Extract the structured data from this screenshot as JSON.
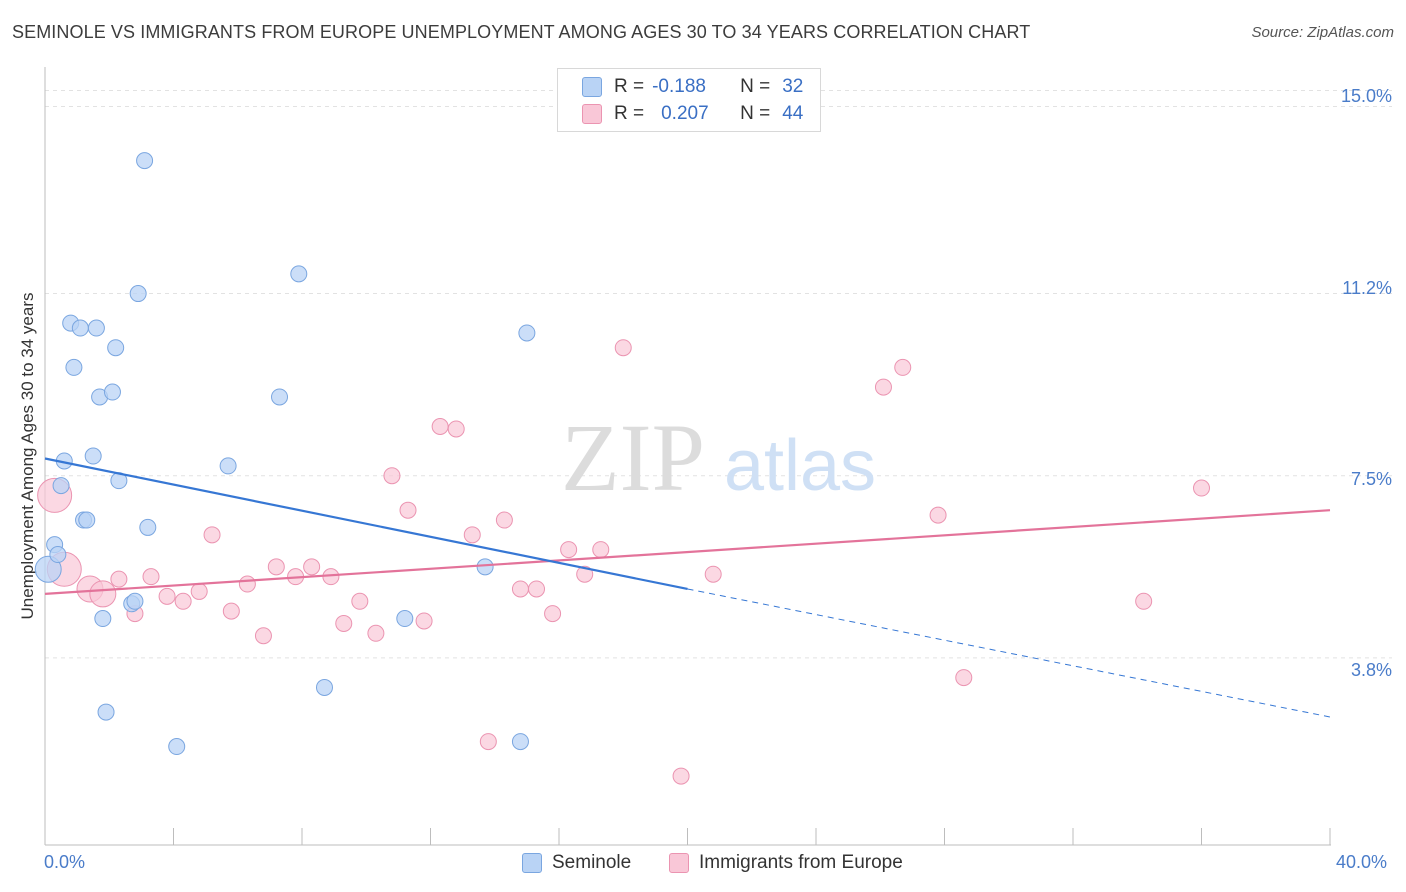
{
  "title": "SEMINOLE VS IMMIGRANTS FROM EUROPE UNEMPLOYMENT AMONG AGES 30 TO 34 YEARS CORRELATION CHART",
  "source": "Source: ZipAtlas.com",
  "colors": {
    "seminole_fill": "#b9d3f5",
    "seminole_stroke": "#7aa6e0",
    "seminole_line": "#3677d4",
    "europe_fill": "#f9c7d7",
    "europe_stroke": "#eb94b1",
    "europe_line": "#e3739a",
    "tick": "#4a7cc9"
  },
  "legend": {
    "r_label": "R =",
    "n_label": "N =",
    "seminole": {
      "r": "-0.188",
      "n": "32"
    },
    "europe": {
      "r": "0.207",
      "n": "44"
    }
  },
  "watermark": {
    "zip": "ZIP",
    "atlas": "atlas"
  },
  "chart_data": {
    "type": "scatter",
    "title": "SEMINOLE VS IMMIGRANTS FROM EUROPE UNEMPLOYMENT AMONG AGES 30 TO 34 YEARS CORRELATION CHART",
    "xlabel": "",
    "ylabel": "Unemployment Among Ages 30 to 34 years",
    "xlim": [
      0,
      40
    ],
    "ylim": [
      0,
      15.7
    ],
    "x_tick_labels": [
      "0.0%",
      "40.0%"
    ],
    "y_ticks": [
      3.8,
      7.5,
      11.2,
      15.0
    ],
    "y_tick_labels": [
      "3.8%",
      "7.5%",
      "11.2%",
      "15.0%"
    ],
    "grid": true,
    "legend_position": "top-center",
    "series": [
      {
        "name": "Seminole",
        "r": -0.188,
        "n": 32,
        "trend": {
          "x_start": 0,
          "y_start": 7.85,
          "x_solid_end": 20,
          "y_solid_end": 5.2,
          "x_dash_end": 40,
          "y_dash_end": 2.6
        },
        "points": [
          {
            "x": 0.1,
            "y": 5.6,
            "s": 2
          },
          {
            "x": 0.3,
            "y": 6.1,
            "s": 1
          },
          {
            "x": 0.4,
            "y": 5.9,
            "s": 1
          },
          {
            "x": 0.5,
            "y": 7.3,
            "s": 1
          },
          {
            "x": 0.6,
            "y": 7.8,
            "s": 1
          },
          {
            "x": 0.8,
            "y": 10.6,
            "s": 1
          },
          {
            "x": 0.9,
            "y": 9.7,
            "s": 1
          },
          {
            "x": 1.1,
            "y": 10.5,
            "s": 1
          },
          {
            "x": 1.2,
            "y": 6.6,
            "s": 1
          },
          {
            "x": 1.3,
            "y": 6.6,
            "s": 1
          },
          {
            "x": 1.5,
            "y": 7.9,
            "s": 1
          },
          {
            "x": 1.6,
            "y": 10.5,
            "s": 1
          },
          {
            "x": 1.7,
            "y": 9.1,
            "s": 1
          },
          {
            "x": 1.8,
            "y": 4.6,
            "s": 1
          },
          {
            "x": 1.9,
            "y": 2.7,
            "s": 1
          },
          {
            "x": 2.1,
            "y": 9.2,
            "s": 1
          },
          {
            "x": 2.2,
            "y": 10.1,
            "s": 1
          },
          {
            "x": 2.3,
            "y": 7.4,
            "s": 1
          },
          {
            "x": 2.7,
            "y": 4.9,
            "s": 1
          },
          {
            "x": 2.8,
            "y": 4.95,
            "s": 1
          },
          {
            "x": 2.9,
            "y": 11.2,
            "s": 1
          },
          {
            "x": 3.1,
            "y": 13.9,
            "s": 1
          },
          {
            "x": 3.2,
            "y": 6.45,
            "s": 1
          },
          {
            "x": 4.1,
            "y": 2.0,
            "s": 1
          },
          {
            "x": 5.7,
            "y": 7.7,
            "s": 1
          },
          {
            "x": 7.3,
            "y": 9.1,
            "s": 1
          },
          {
            "x": 7.9,
            "y": 11.6,
            "s": 1
          },
          {
            "x": 8.7,
            "y": 3.2,
            "s": 1
          },
          {
            "x": 11.2,
            "y": 4.6,
            "s": 1
          },
          {
            "x": 13.7,
            "y": 5.65,
            "s": 1
          },
          {
            "x": 14.8,
            "y": 2.1,
            "s": 1
          },
          {
            "x": 15.0,
            "y": 10.4,
            "s": 1
          }
        ]
      },
      {
        "name": "Immigrants from Europe",
        "r": 0.207,
        "n": 44,
        "trend": {
          "x_start": 0,
          "y_start": 5.1,
          "x_end": 40,
          "y_end": 6.8
        },
        "points": [
          {
            "x": 0.3,
            "y": 7.1,
            "s": 3
          },
          {
            "x": 0.6,
            "y": 5.6,
            "s": 3
          },
          {
            "x": 1.4,
            "y": 5.2,
            "s": 2
          },
          {
            "x": 1.8,
            "y": 5.1,
            "s": 2
          },
          {
            "x": 2.3,
            "y": 5.4,
            "s": 1
          },
          {
            "x": 2.8,
            "y": 4.7,
            "s": 1
          },
          {
            "x": 3.3,
            "y": 5.45,
            "s": 1
          },
          {
            "x": 3.8,
            "y": 5.05,
            "s": 1
          },
          {
            "x": 4.3,
            "y": 4.95,
            "s": 1
          },
          {
            "x": 4.8,
            "y": 5.15,
            "s": 1
          },
          {
            "x": 5.2,
            "y": 6.3,
            "s": 1
          },
          {
            "x": 5.8,
            "y": 4.75,
            "s": 1
          },
          {
            "x": 6.3,
            "y": 5.3,
            "s": 1
          },
          {
            "x": 6.8,
            "y": 4.25,
            "s": 1
          },
          {
            "x": 7.2,
            "y": 5.65,
            "s": 1
          },
          {
            "x": 7.8,
            "y": 5.45,
            "s": 1
          },
          {
            "x": 8.3,
            "y": 5.65,
            "s": 1
          },
          {
            "x": 8.9,
            "y": 5.45,
            "s": 1
          },
          {
            "x": 9.3,
            "y": 4.5,
            "s": 1
          },
          {
            "x": 9.8,
            "y": 4.95,
            "s": 1
          },
          {
            "x": 10.3,
            "y": 4.3,
            "s": 1
          },
          {
            "x": 10.8,
            "y": 7.5,
            "s": 1
          },
          {
            "x": 11.3,
            "y": 6.8,
            "s": 1
          },
          {
            "x": 11.8,
            "y": 4.55,
            "s": 1
          },
          {
            "x": 12.3,
            "y": 8.5,
            "s": 1
          },
          {
            "x": 12.8,
            "y": 8.45,
            "s": 1
          },
          {
            "x": 13.3,
            "y": 6.3,
            "s": 1
          },
          {
            "x": 13.8,
            "y": 2.1,
            "s": 1
          },
          {
            "x": 14.3,
            "y": 6.6,
            "s": 1
          },
          {
            "x": 14.8,
            "y": 5.2,
            "s": 1
          },
          {
            "x": 15.3,
            "y": 5.2,
            "s": 1
          },
          {
            "x": 15.8,
            "y": 4.7,
            "s": 1
          },
          {
            "x": 16.3,
            "y": 6.0,
            "s": 1
          },
          {
            "x": 16.8,
            "y": 5.5,
            "s": 1
          },
          {
            "x": 17.3,
            "y": 6.0,
            "s": 1
          },
          {
            "x": 18.0,
            "y": 10.1,
            "s": 1
          },
          {
            "x": 19.8,
            "y": 1.4,
            "s": 1
          },
          {
            "x": 20.8,
            "y": 5.5,
            "s": 1
          },
          {
            "x": 26.1,
            "y": 9.3,
            "s": 1
          },
          {
            "x": 27.8,
            "y": 6.7,
            "s": 1
          },
          {
            "x": 28.6,
            "y": 3.4,
            "s": 1
          },
          {
            "x": 34.2,
            "y": 4.95,
            "s": 1
          },
          {
            "x": 36.0,
            "y": 7.25,
            "s": 1
          },
          {
            "x": 26.7,
            "y": 9.7,
            "s": 1
          }
        ]
      }
    ]
  }
}
